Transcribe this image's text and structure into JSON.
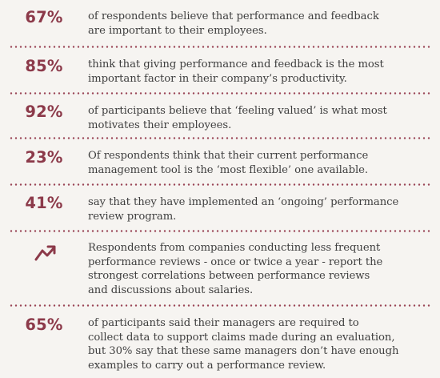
{
  "colors": {
    "accent": "#8c3a4a",
    "text": "#3f3f3f",
    "background": "#f6f4f1",
    "divider_dots": "#9a4556"
  },
  "stats": [
    {
      "value": "67%",
      "lines": [
        "of respondents believe that performance and feedback",
        "are important to their employees."
      ]
    },
    {
      "value": "85%",
      "lines": [
        "think that giving performance and feedback is the most",
        "important factor in their company’s productivity."
      ]
    },
    {
      "value": "92%",
      "lines": [
        "of participants believe that ‘feeling valued’ is what most",
        "motivates their employees."
      ]
    },
    {
      "value": "23%",
      "lines": [
        "Of respondents think that their current performance",
        "management tool is the ‘most flexible’ one available."
      ]
    },
    {
      "value": "41%",
      "lines": [
        "say that they have implemented an ‘ongoing’ performance",
        "review program."
      ]
    },
    {
      "icon": "trend-up-icon",
      "lines": [
        "Respondents from companies conducting less frequent",
        "performance reviews - once or twice a year - report the",
        "strongest correlations between performance reviews",
        "and discussions about salaries."
      ]
    },
    {
      "value": "65%",
      "lines": [
        "of participants said their managers are required to",
        "collect data to support claims made during an evaluation,",
        "but 30% say that these same managers don’t have enough",
        "examples to carry out a performance review."
      ]
    }
  ]
}
